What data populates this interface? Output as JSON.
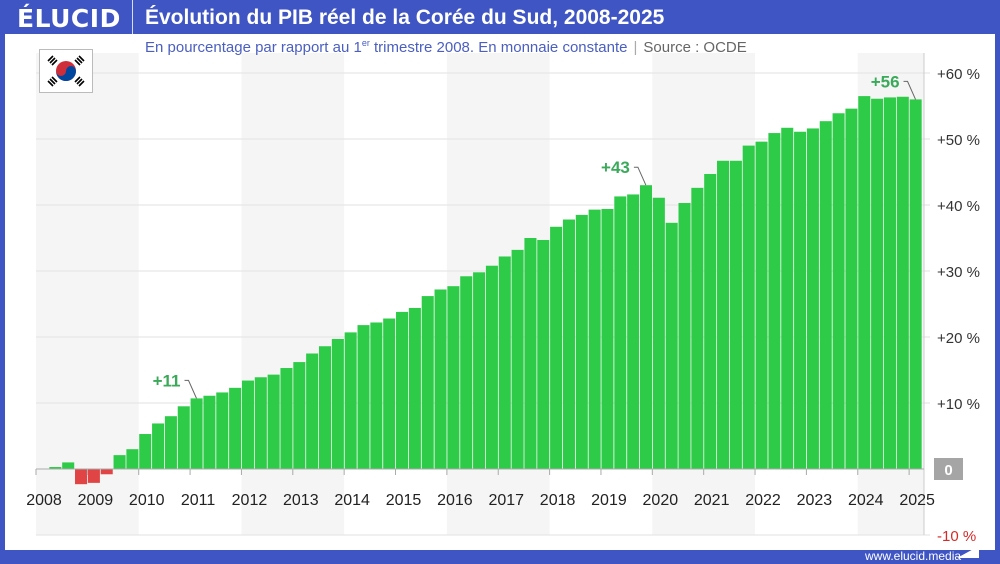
{
  "header": {
    "logo": "ÉLUCID",
    "title": "Évolution du PIB réel de la Corée du Sud, 2008-2025",
    "subtitle_pre": "En pourcentage par rapport au 1",
    "subtitle_sup": "er",
    "subtitle_post": " trimestre 2008. En monnaie constante",
    "separator": "|",
    "source": "Source : OCDE"
  },
  "flag_icon": "south-korea-flag",
  "footer": {
    "url": "www.elucid.media"
  },
  "colors": {
    "positive": "#2ecb48",
    "negative": "#e04444",
    "brand": "#3f55c4",
    "annotation": "#3aaa5a"
  },
  "chart_data": {
    "type": "bar",
    "title": "Évolution du PIB réel de la Corée du Sud, 2008-2025",
    "ylabel": "",
    "xlabel": "",
    "ylim": [
      -10,
      60
    ],
    "grid": true,
    "x_tick_labels": [
      "2008",
      "2009",
      "2010",
      "2011",
      "2012",
      "2013",
      "2014",
      "2015",
      "2016",
      "2017",
      "2018",
      "2019",
      "2020",
      "2021",
      "2022",
      "2023",
      "2024",
      "2025"
    ],
    "y_tick_labels": [
      {
        "value": 60,
        "label": "+60 %"
      },
      {
        "value": 50,
        "label": "+50 %"
      },
      {
        "value": 40,
        "label": "+40 %"
      },
      {
        "value": 30,
        "label": "+30 %"
      },
      {
        "value": 20,
        "label": "+20 %"
      },
      {
        "value": 10,
        "label": "+10 %"
      },
      {
        "value": 0,
        "label": "0"
      },
      {
        "value": -10,
        "label": "-10 %"
      }
    ],
    "start": "2008-Q1",
    "frequency": "quarterly",
    "values": [
      0,
      0.3,
      1.0,
      -2.3,
      -2.1,
      -0.8,
      2.1,
      3.0,
      5.3,
      6.9,
      8.0,
      9.5,
      10.7,
      11.1,
      11.6,
      12.3,
      13.4,
      13.9,
      14.3,
      15.3,
      16.2,
      17.5,
      18.6,
      19.7,
      20.7,
      21.8,
      22.2,
      22.8,
      23.8,
      24.4,
      26.2,
      27.2,
      27.7,
      29.2,
      29.8,
      30.8,
      32.2,
      33.2,
      35.0,
      34.7,
      36.7,
      37.8,
      38.5,
      39.3,
      39.4,
      41.3,
      41.6,
      43.0,
      41.1,
      37.3,
      40.3,
      42.6,
      44.7,
      46.7,
      46.7,
      49.0,
      49.6,
      50.9,
      51.7,
      51.1,
      51.6,
      52.7,
      53.9,
      54.6,
      56.5,
      56.1,
      56.3,
      56.4,
      56.0
    ],
    "annotations": [
      {
        "label": "+11",
        "period": "2011-Q1"
      },
      {
        "label": "+43",
        "period": "2019-Q4"
      },
      {
        "label": "+56",
        "period": "2025-Q1"
      }
    ]
  }
}
